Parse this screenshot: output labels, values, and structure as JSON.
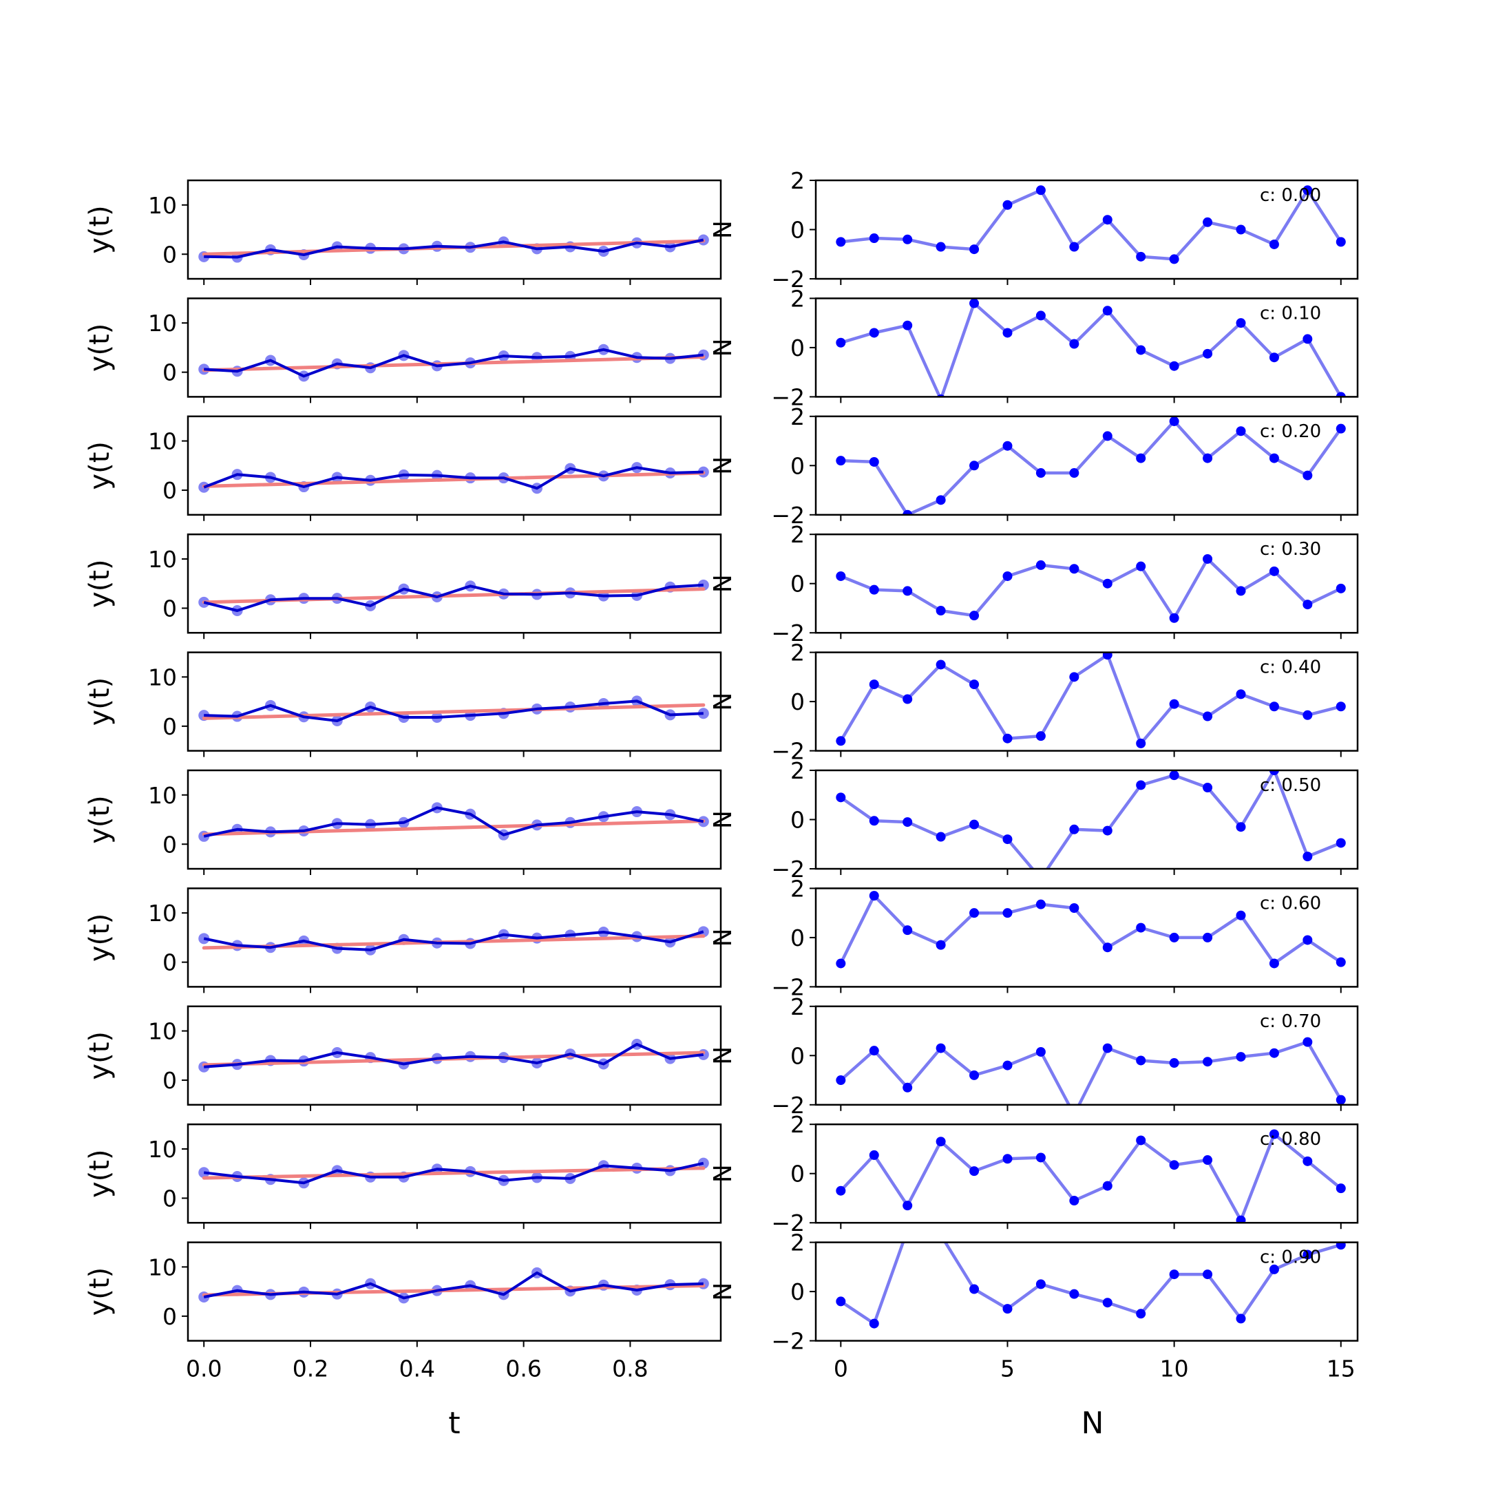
{
  "figure": {
    "left_xlabel": "t",
    "right_xlabel": "N",
    "left_ylabel": "y(t)",
    "right_ylabel": "N",
    "colors": {
      "data_line": "#0000cc",
      "data_points": "#5a5af0",
      "fit_line": "#f08080",
      "right_line": "#7b7bf2",
      "right_points": "#0000ff",
      "axes": "#000000"
    }
  },
  "chart_data": [
    {
      "type": "line",
      "panel": "left",
      "count": 10,
      "x": [
        0,
        0.0625,
        0.125,
        0.1875,
        0.25,
        0.3125,
        0.375,
        0.4375,
        0.5,
        0.5625,
        0.625,
        0.6875,
        0.75,
        0.8125,
        0.875,
        0.9375
      ],
      "xlim": [
        -0.03,
        0.97
      ],
      "ylim": [
        -5,
        15
      ],
      "xticks": [
        0,
        0.2,
        0.4,
        0.6,
        0.8
      ],
      "xtick_labels": [
        "0.0",
        "0.2",
        "0.4",
        "0.6",
        "0.8"
      ],
      "yticks": [
        0,
        10
      ],
      "ytick_labels": [
        "0",
        "10"
      ],
      "xlabel": "t",
      "ylabel": "y(t)",
      "series": [
        {
          "values": [
            -0.5,
            -0.6,
            0.9,
            -0.1,
            1.5,
            1.2,
            1.1,
            1.6,
            1.4,
            2.5,
            1.1,
            1.5,
            0.6,
            2.3,
            1.5,
            2.9
          ],
          "fit": [
            0.0,
            2.7
          ]
        },
        {
          "values": [
            0.6,
            0.2,
            2.4,
            -0.8,
            1.7,
            0.9,
            3.4,
            1.3,
            1.9,
            3.3,
            3.0,
            3.2,
            4.6,
            3.0,
            2.8,
            3.5
          ],
          "fit": [
            0.4,
            3.1
          ]
        },
        {
          "values": [
            0.6,
            3.2,
            2.6,
            0.7,
            2.6,
            2.0,
            3.1,
            3.0,
            2.5,
            2.5,
            0.4,
            4.4,
            2.9,
            4.6,
            3.5,
            3.7
          ],
          "fit": [
            0.8,
            3.5
          ]
        },
        {
          "values": [
            1.2,
            -0.5,
            1.7,
            2.0,
            2.0,
            0.5,
            3.9,
            2.3,
            4.5,
            2.9,
            2.8,
            3.1,
            2.5,
            2.6,
            4.3,
            4.7
          ],
          "fit": [
            1.2,
            3.9
          ]
        },
        {
          "values": [
            2.2,
            2.0,
            4.2,
            1.9,
            1.1,
            3.9,
            1.8,
            1.8,
            2.2,
            2.6,
            3.5,
            3.9,
            4.6,
            5.1,
            2.3,
            2.6
          ],
          "fit": [
            1.6,
            4.3
          ]
        },
        {
          "values": [
            1.6,
            3.0,
            2.5,
            2.7,
            4.2,
            4.0,
            4.4,
            7.4,
            6.1,
            1.9,
            3.9,
            4.4,
            5.6,
            6.6,
            6.0,
            4.6
          ],
          "fit": [
            2.0,
            4.7
          ]
        },
        {
          "values": [
            4.8,
            3.4,
            3.0,
            4.3,
            2.8,
            2.5,
            4.6,
            3.9,
            3.8,
            5.6,
            4.9,
            5.5,
            6.1,
            5.2,
            4.1,
            6.2
          ],
          "fit": [
            2.9,
            5.3
          ]
        },
        {
          "values": [
            2.7,
            3.2,
            4.0,
            3.9,
            5.6,
            4.6,
            3.3,
            4.4,
            4.8,
            4.6,
            3.5,
            5.3,
            3.3,
            7.3,
            4.4,
            5.2
          ],
          "fit": [
            3.1,
            5.6
          ]
        },
        {
          "values": [
            5.2,
            4.4,
            3.8,
            3.1,
            5.6,
            4.3,
            4.3,
            5.9,
            5.4,
            3.6,
            4.2,
            4.0,
            6.6,
            6.1,
            5.6,
            7.1
          ],
          "fit": [
            4.1,
            6.1
          ]
        },
        {
          "values": [
            3.9,
            5.2,
            4.4,
            4.9,
            4.5,
            6.6,
            3.7,
            5.2,
            6.2,
            4.4,
            8.8,
            5.1,
            6.3,
            5.3,
            6.4,
            6.6
          ],
          "fit": [
            4.3,
            6.2
          ]
        }
      ]
    },
    {
      "type": "line",
      "panel": "right",
      "count": 10,
      "x": [
        0,
        1,
        2,
        3,
        4,
        5,
        6,
        7,
        8,
        9,
        10,
        11,
        12,
        13,
        14,
        15
      ],
      "xlim": [
        -0.75,
        15.5
      ],
      "ylim": [
        -2,
        2
      ],
      "xticks": [
        0,
        5,
        10,
        15
      ],
      "xtick_labels": [
        "0",
        "5",
        "10",
        "15"
      ],
      "yticks": [
        -2,
        0,
        2
      ],
      "ytick_labels": [
        "−2",
        "0",
        "2"
      ],
      "xlabel": "N",
      "annotations": [
        "c: 0.00",
        "c: 0.10",
        "c: 0.20",
        "c: 0.30",
        "c: 0.40",
        "c: 0.50",
        "c: 0.60",
        "c: 0.70",
        "c: 0.80",
        "c: 0.90"
      ],
      "series": [
        {
          "values": [
            -0.5,
            -0.35,
            -0.4,
            -0.7,
            -0.8,
            1.0,
            1.6,
            -0.7,
            0.4,
            -1.1,
            -1.2,
            0.3,
            0.0,
            -0.6,
            1.6,
            -0.5
          ]
        },
        {
          "values": [
            0.2,
            0.6,
            0.9,
            -2.1,
            1.8,
            0.6,
            1.3,
            0.15,
            1.5,
            -0.1,
            -0.75,
            -0.25,
            1.0,
            -0.4,
            0.35,
            -2.0
          ]
        },
        {
          "values": [
            0.2,
            0.15,
            -2.0,
            -1.4,
            0.0,
            0.8,
            -0.3,
            -0.3,
            1.2,
            0.3,
            1.8,
            0.3,
            1.4,
            0.3,
            -0.4,
            1.5
          ]
        },
        {
          "values": [
            0.3,
            -0.25,
            -0.3,
            -1.1,
            -1.3,
            0.3,
            0.75,
            0.6,
            0.0,
            0.7,
            -1.4,
            1.0,
            -0.3,
            0.5,
            -0.85,
            -0.2
          ]
        },
        {
          "values": [
            -1.6,
            0.7,
            0.1,
            1.5,
            0.7,
            -1.5,
            -1.4,
            1.0,
            1.9,
            -1.7,
            -0.1,
            -0.6,
            0.3,
            -0.2,
            -0.55,
            -0.2
          ]
        },
        {
          "values": [
            0.9,
            -0.05,
            -0.1,
            -0.7,
            -0.2,
            -0.8,
            -2.4,
            -0.4,
            -0.45,
            1.4,
            1.8,
            1.3,
            -0.3,
            2.0,
            -1.5,
            -0.95
          ]
        },
        {
          "values": [
            -1.05,
            1.7,
            0.3,
            -0.3,
            1.0,
            1.0,
            1.35,
            1.2,
            -0.4,
            0.4,
            0.0,
            0.0,
            0.9,
            -1.05,
            -0.1,
            -1.0
          ]
        },
        {
          "values": [
            -1.0,
            0.2,
            -1.3,
            0.3,
            -0.8,
            -0.4,
            0.15,
            -2.4,
            0.3,
            -0.2,
            -0.3,
            -0.25,
            -0.05,
            0.1,
            0.55,
            -1.8
          ]
        },
        {
          "values": [
            -0.7,
            0.75,
            -1.3,
            1.3,
            0.1,
            0.6,
            0.65,
            -1.1,
            -0.5,
            1.35,
            0.35,
            0.55,
            -1.9,
            1.6,
            0.5,
            -0.6
          ]
        },
        {
          "values": [
            -0.4,
            -1.3,
            2.5,
            2.3,
            0.1,
            -0.7,
            0.3,
            -0.1,
            -0.45,
            -0.9,
            0.7,
            0.7,
            -1.1,
            0.9,
            1.5,
            1.9
          ]
        }
      ]
    }
  ]
}
